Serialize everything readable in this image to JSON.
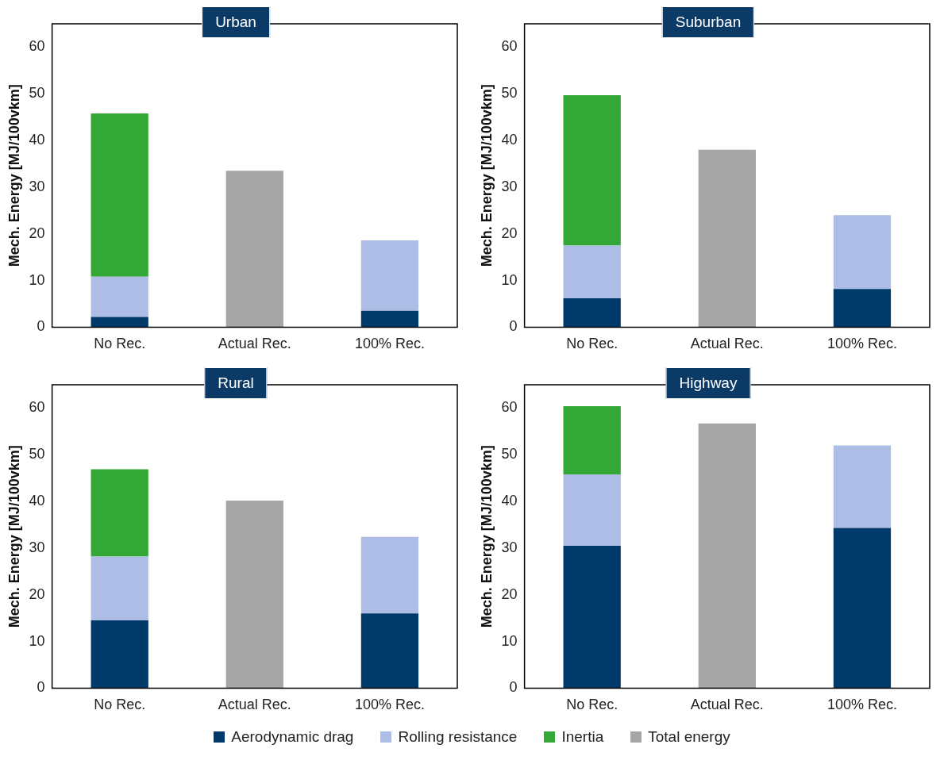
{
  "chart_data": [
    {
      "type": "bar",
      "title": "Urban",
      "ylabel": "Mech. Energy [MJ/100vkm]",
      "categories": [
        "No Rec.",
        "Actual Rec.",
        "100% Rec."
      ],
      "stacked": true,
      "ylim": [
        0,
        65
      ],
      "yticks": [
        0,
        10,
        20,
        30,
        40,
        50,
        60
      ],
      "grid": false,
      "series": [
        {
          "color": "#003a6b",
          "values": [
            2.2,
            null,
            3.5
          ]
        },
        {
          "color": "#aebde6",
          "values": [
            8.6,
            null,
            15.1
          ]
        },
        {
          "color": "#33a837",
          "values": [
            35,
            null,
            null
          ]
        },
        {
          "color": "#a6a6a6",
          "values": [
            null,
            33.5,
            null
          ]
        }
      ]
    },
    {
      "type": "bar",
      "title": "Suburban",
      "ylabel": "Mech. Energy [MJ/100vkm]",
      "categories": [
        "No Rec.",
        "Actual Rec.",
        "100% Rec."
      ],
      "stacked": true,
      "ylim": [
        0,
        65
      ],
      "yticks": [
        0,
        10,
        20,
        30,
        40,
        50,
        60
      ],
      "grid": false,
      "series": [
        {
          "color": "#003a6b",
          "values": [
            6.2,
            null,
            8.2
          ]
        },
        {
          "color": "#aebde6",
          "values": [
            11.3,
            null,
            15.8
          ]
        },
        {
          "color": "#33a837",
          "values": [
            32.2,
            null,
            null
          ]
        },
        {
          "color": "#a6a6a6",
          "values": [
            null,
            38,
            null
          ]
        }
      ]
    },
    {
      "type": "bar",
      "title": "Rural",
      "ylabel": "Mech. Energy [MJ/100vkm]",
      "categories": [
        "No Rec.",
        "Actual Rec.",
        "100% Rec."
      ],
      "stacked": true,
      "ylim": [
        0,
        65
      ],
      "yticks": [
        0,
        10,
        20,
        30,
        40,
        50,
        60
      ],
      "grid": false,
      "series": [
        {
          "color": "#003a6b",
          "values": [
            14.5,
            null,
            16
          ]
        },
        {
          "color": "#aebde6",
          "values": [
            13.7,
            null,
            16.4
          ]
        },
        {
          "color": "#33a837",
          "values": [
            18.7,
            null,
            null
          ]
        },
        {
          "color": "#a6a6a6",
          "values": [
            null,
            40.2,
            null
          ]
        }
      ]
    },
    {
      "type": "bar",
      "title": "Highway",
      "ylabel": "Mech. Energy [MJ/100vkm]",
      "categories": [
        "No Rec.",
        "Actual Rec.",
        "100% Rec."
      ],
      "stacked": true,
      "ylim": [
        0,
        65
      ],
      "yticks": [
        0,
        10,
        20,
        30,
        40,
        50,
        60
      ],
      "grid": false,
      "legend": "bottom",
      "series": [
        {
          "name": "Aerodynamic drag",
          "color": "#003a6b",
          "values": [
            30.5,
            null,
            34.3
          ]
        },
        {
          "name": "Rolling resistance",
          "color": "#aebde6",
          "values": [
            15.3,
            null,
            17.7
          ]
        },
        {
          "name": "Inertia",
          "color": "#33a837",
          "values": [
            14.6,
            null,
            null
          ]
        },
        {
          "name": "Total energy",
          "color": "#a6a6a6",
          "values": [
            null,
            56.7,
            null
          ]
        }
      ]
    }
  ]
}
